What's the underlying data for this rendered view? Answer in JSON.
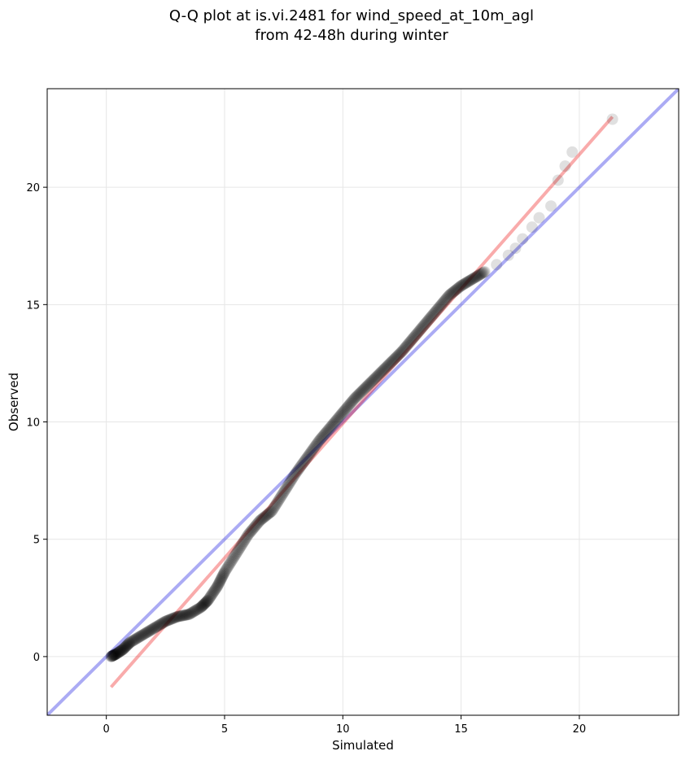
{
  "chart_data": {
    "type": "scatter",
    "title_lines": [
      "Q-Q plot at is.vi.2481 for wind_speed_at_10m_agl",
      "from 42-48h during winter"
    ],
    "xlabel": "Simulated",
    "ylabel": "Observed",
    "xlim": [
      -2.5,
      24.2
    ],
    "ylim": [
      -2.5,
      24.2
    ],
    "xticks": [
      0,
      5,
      10,
      15,
      20
    ],
    "yticks": [
      0,
      5,
      10,
      15,
      20
    ],
    "grid": true,
    "colors": {
      "points": "#000000",
      "reference_line": "#0000dd",
      "fit_line": "#ee0000",
      "grid": "#e6e6e6"
    },
    "reference_line": {
      "x": [
        -2.5,
        24.2
      ],
      "y": [
        -2.5,
        24.2
      ]
    },
    "fit_line": {
      "x": [
        0.2,
        21.4
      ],
      "y": [
        -1.3,
        23.0
      ]
    },
    "quantile_points": {
      "x": [
        0.2,
        0.4,
        0.7,
        1.0,
        1.5,
        2.0,
        2.5,
        3.0,
        3.5,
        4.0,
        4.3,
        4.7,
        5.0,
        5.5,
        6.0,
        6.5,
        7.0,
        7.5,
        8.0,
        8.5,
        9.0,
        9.5,
        10.0,
        10.5,
        11.0,
        11.5,
        12.0,
        12.5,
        13.0,
        13.5,
        14.0,
        14.5,
        15.0,
        15.5,
        16.0,
        16.5,
        17.0,
        17.3,
        17.6,
        18.0,
        18.3,
        18.8,
        19.1,
        19.4,
        19.7,
        21.4
      ],
      "y": [
        0.0,
        0.1,
        0.3,
        0.6,
        0.9,
        1.2,
        1.5,
        1.7,
        1.8,
        2.1,
        2.4,
        3.0,
        3.6,
        4.4,
        5.2,
        5.8,
        6.2,
        7.0,
        7.8,
        8.5,
        9.2,
        9.8,
        10.4,
        11.0,
        11.5,
        12.0,
        12.5,
        13.0,
        13.6,
        14.2,
        14.8,
        15.4,
        15.8,
        16.1,
        16.4,
        16.7,
        17.1,
        17.4,
        17.8,
        18.3,
        18.7,
        19.2,
        20.3,
        20.9,
        21.5,
        22.9
      ]
    }
  }
}
